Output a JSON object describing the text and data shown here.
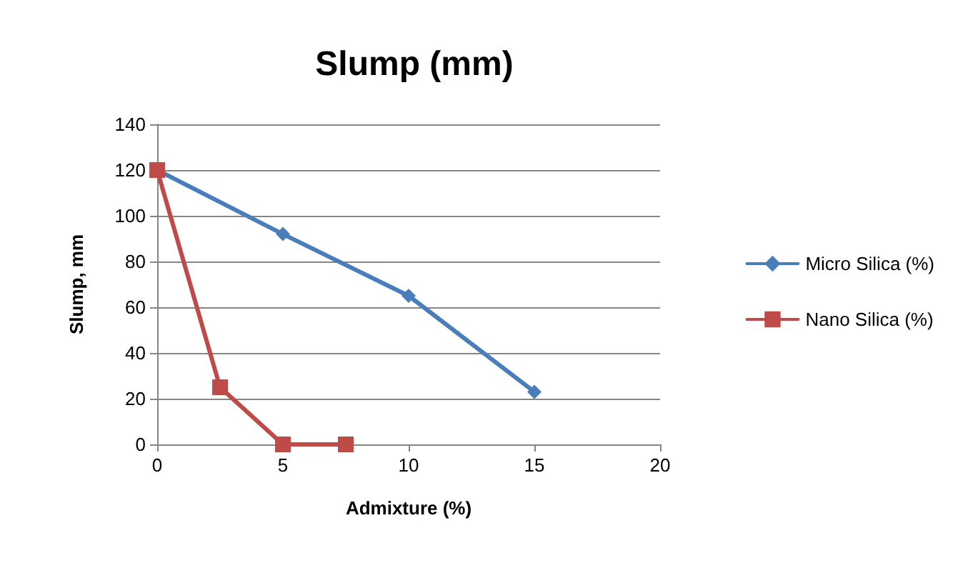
{
  "chart_data": {
    "type": "line",
    "title": "Slump (mm)",
    "xlabel": "Admixture (%)",
    "ylabel": "Slump, mm",
    "xlim": [
      0,
      20
    ],
    "xticks": [
      0,
      5,
      10,
      15,
      20
    ],
    "ylim": [
      0,
      140
    ],
    "yticks": [
      0,
      20,
      40,
      60,
      80,
      100,
      120,
      140
    ],
    "grid": "y",
    "legend": "right",
    "line_style": "solid",
    "series": [
      {
        "name": "Micro Silica (%)",
        "color": "#4a7ebb",
        "marker": "diamond",
        "x": [
          0,
          5,
          10,
          15
        ],
        "values": [
          120,
          92,
          65,
          23
        ]
      },
      {
        "name": "Nano Silica (%)",
        "color": "#be4b48",
        "marker": "square",
        "x": [
          0,
          2.5,
          5,
          7.5
        ],
        "values": [
          120,
          25,
          0,
          0
        ]
      }
    ]
  }
}
